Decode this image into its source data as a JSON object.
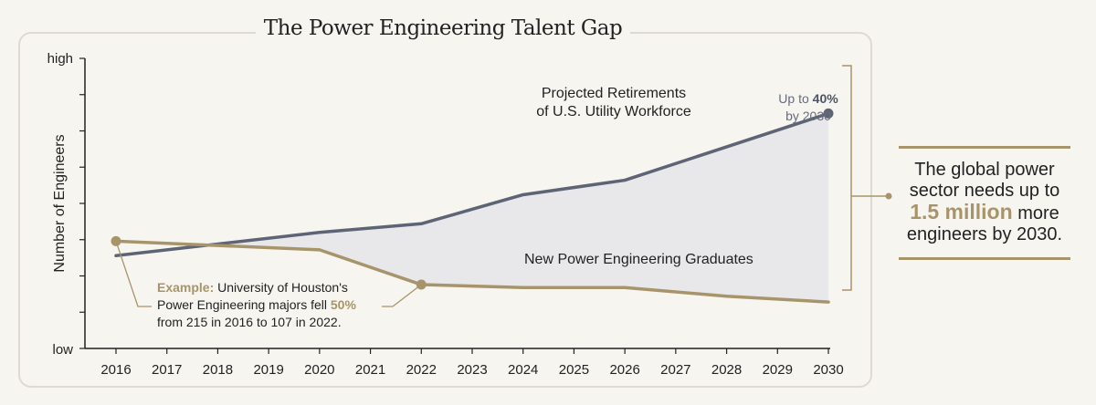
{
  "title": "The Power Engineering Talent Gap",
  "chart_data": {
    "type": "line",
    "title": "The Power Engineering Talent Gap",
    "xlabel": "",
    "ylabel": "Number of Engineers",
    "y_tick_labels": [
      "high",
      "low"
    ],
    "ylim": [
      0,
      10
    ],
    "x_ticks": [
      2016,
      2017,
      2018,
      2019,
      2020,
      2021,
      2022,
      2023,
      2024,
      2025,
      2026,
      2027,
      2028,
      2029,
      2030
    ],
    "series": [
      {
        "name": "Projected Retirements of U.S. Utility Workforce",
        "label_lines": [
          "Projected Retirements",
          "of U.S. Utility Workforce"
        ],
        "color": "#5d6475",
        "x": [
          2016,
          2020,
          2022,
          2024,
          2026,
          2030
        ],
        "y": [
          3.2,
          4.0,
          4.3,
          5.3,
          5.8,
          8.1
        ],
        "end_marker": true
      },
      {
        "name": "New Power Engineering Graduates",
        "label_lines": [
          "New Power Engineering Graduates"
        ],
        "color": "#a8946a",
        "x": [
          2016,
          2020,
          2022,
          2024,
          2026,
          2028,
          2030
        ],
        "y": [
          3.7,
          3.4,
          2.2,
          2.1,
          2.1,
          1.8,
          1.6
        ],
        "markers_at": [
          2016,
          2022
        ]
      }
    ],
    "annotations": {
      "retirement_share": {
        "prefix": "Up to ",
        "value": "40%",
        "suffix": "by 2030"
      },
      "example": {
        "label": "Example:",
        "line1_rest": " University of Houston's",
        "line2_pre": "Power Engineering majors fell ",
        "value": "50%",
        "line3": "from 215 in 2016 to 107 in 2022."
      }
    }
  },
  "callout": {
    "line1": "The global power",
    "line2": "sector needs up to",
    "highlight": "1.5 million",
    "line3_rest": " more",
    "line4": "engineers by 2030."
  }
}
